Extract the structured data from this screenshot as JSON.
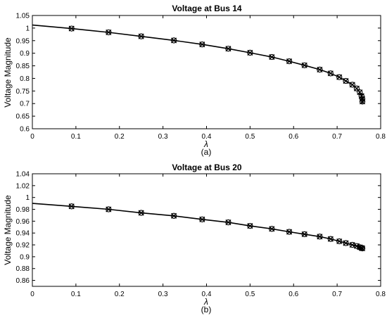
{
  "chart_data": [
    {
      "type": "line",
      "title": "Voltage at Bus 14",
      "xlabel": "λ",
      "ylabel": "Voltage Magnitude",
      "caption": "(a)",
      "xlim": [
        0,
        0.8
      ],
      "ylim": [
        0.6,
        1.05
      ],
      "xticks": [
        0,
        0.1,
        0.2,
        0.3,
        0.4,
        0.5,
        0.6,
        0.7,
        0.8
      ],
      "yticks": [
        0.6,
        0.65,
        0.7,
        0.75,
        0.8,
        0.85,
        0.9,
        0.95,
        1,
        1.05
      ],
      "xtick_labels": [
        "0",
        "0.1",
        "0.2",
        "0.3",
        "0.4",
        "0.5",
        "0.6",
        "0.7",
        "0.8"
      ],
      "ytick_labels": [
        "0.6",
        "0.65",
        "0.7",
        "0.75",
        "0.8",
        "0.85",
        "0.9",
        "0.95",
        "1",
        "1.05"
      ],
      "grid": false,
      "series": [
        {
          "style": "solid-line",
          "x": [
            0,
            0.09,
            0.175,
            0.25,
            0.325,
            0.39,
            0.45,
            0.5,
            0.55,
            0.59,
            0.625,
            0.66,
            0.685,
            0.705,
            0.72,
            0.735,
            0.745,
            0.752,
            0.756,
            0.758,
            0.759,
            0.758,
            0.757
          ],
          "y": [
            1.012,
            0.998,
            0.983,
            0.967,
            0.951,
            0.935,
            0.918,
            0.902,
            0.885,
            0.868,
            0.852,
            0.835,
            0.82,
            0.805,
            0.79,
            0.775,
            0.76,
            0.745,
            0.732,
            0.72,
            0.71,
            0.703,
            0.7
          ]
        },
        {
          "style": "circle-markers",
          "x": [
            0.09,
            0.175,
            0.25,
            0.325,
            0.39,
            0.45,
            0.5,
            0.55,
            0.59,
            0.625,
            0.66,
            0.685,
            0.705,
            0.72,
            0.735,
            0.745,
            0.752,
            0.756,
            0.758,
            0.758
          ],
          "y": [
            0.998,
            0.983,
            0.967,
            0.951,
            0.935,
            0.918,
            0.902,
            0.885,
            0.868,
            0.852,
            0.835,
            0.82,
            0.805,
            0.79,
            0.775,
            0.76,
            0.745,
            0.73,
            0.718,
            0.708
          ]
        },
        {
          "style": "x-markers",
          "x": [
            0.09,
            0.175,
            0.25,
            0.325,
            0.39,
            0.45,
            0.5,
            0.55,
            0.59,
            0.625,
            0.66,
            0.685,
            0.705,
            0.72,
            0.735,
            0.745,
            0.752,
            0.756,
            0.758,
            0.758
          ],
          "y": [
            0.998,
            0.983,
            0.967,
            0.951,
            0.935,
            0.918,
            0.902,
            0.885,
            0.868,
            0.852,
            0.835,
            0.82,
            0.805,
            0.79,
            0.775,
            0.76,
            0.745,
            0.73,
            0.718,
            0.708
          ]
        }
      ]
    },
    {
      "type": "line",
      "title": "Voltage at Bus 20",
      "xlabel": "λ",
      "ylabel": "Voltage Magnitude",
      "caption": "(b)",
      "xlim": [
        0,
        0.8
      ],
      "ylim": [
        0.85,
        1.04
      ],
      "xticks": [
        0,
        0.1,
        0.2,
        0.3,
        0.4,
        0.5,
        0.6,
        0.7,
        0.8
      ],
      "yticks": [
        0.86,
        0.88,
        0.9,
        0.92,
        0.94,
        0.96,
        0.98,
        1,
        1.02,
        1.04
      ],
      "xtick_labels": [
        "0",
        "0.1",
        "0.2",
        "0.3",
        "0.4",
        "0.5",
        "0.6",
        "0.7",
        "0.8"
      ],
      "ytick_labels": [
        "0.86",
        "0.88",
        "0.9",
        "0.92",
        "0.94",
        "0.96",
        "0.98",
        "1",
        "1.02",
        "1.04"
      ],
      "grid": false,
      "series": [
        {
          "style": "solid-line",
          "x": [
            0,
            0.09,
            0.175,
            0.25,
            0.325,
            0.39,
            0.45,
            0.5,
            0.55,
            0.59,
            0.625,
            0.66,
            0.685,
            0.705,
            0.72,
            0.735,
            0.745,
            0.752,
            0.756,
            0.758,
            0.759
          ],
          "y": [
            0.99,
            0.985,
            0.98,
            0.974,
            0.969,
            0.963,
            0.958,
            0.952,
            0.947,
            0.942,
            0.938,
            0.934,
            0.93,
            0.926,
            0.923,
            0.92,
            0.918,
            0.916,
            0.915,
            0.914,
            0.913
          ]
        },
        {
          "style": "circle-markers",
          "x": [
            0.09,
            0.175,
            0.25,
            0.325,
            0.39,
            0.45,
            0.5,
            0.55,
            0.59,
            0.625,
            0.66,
            0.685,
            0.705,
            0.72,
            0.735,
            0.745,
            0.752,
            0.756,
            0.758
          ],
          "y": [
            0.985,
            0.98,
            0.974,
            0.969,
            0.963,
            0.958,
            0.952,
            0.947,
            0.942,
            0.938,
            0.934,
            0.93,
            0.926,
            0.923,
            0.92,
            0.918,
            0.916,
            0.915,
            0.914
          ]
        },
        {
          "style": "x-markers",
          "x": [
            0.09,
            0.175,
            0.25,
            0.325,
            0.39,
            0.45,
            0.5,
            0.55,
            0.59,
            0.625,
            0.66,
            0.685,
            0.705,
            0.72,
            0.735,
            0.745,
            0.752,
            0.756,
            0.758
          ],
          "y": [
            0.985,
            0.98,
            0.974,
            0.969,
            0.963,
            0.958,
            0.952,
            0.947,
            0.942,
            0.938,
            0.934,
            0.93,
            0.926,
            0.923,
            0.92,
            0.918,
            0.916,
            0.915,
            0.914
          ]
        }
      ]
    }
  ]
}
